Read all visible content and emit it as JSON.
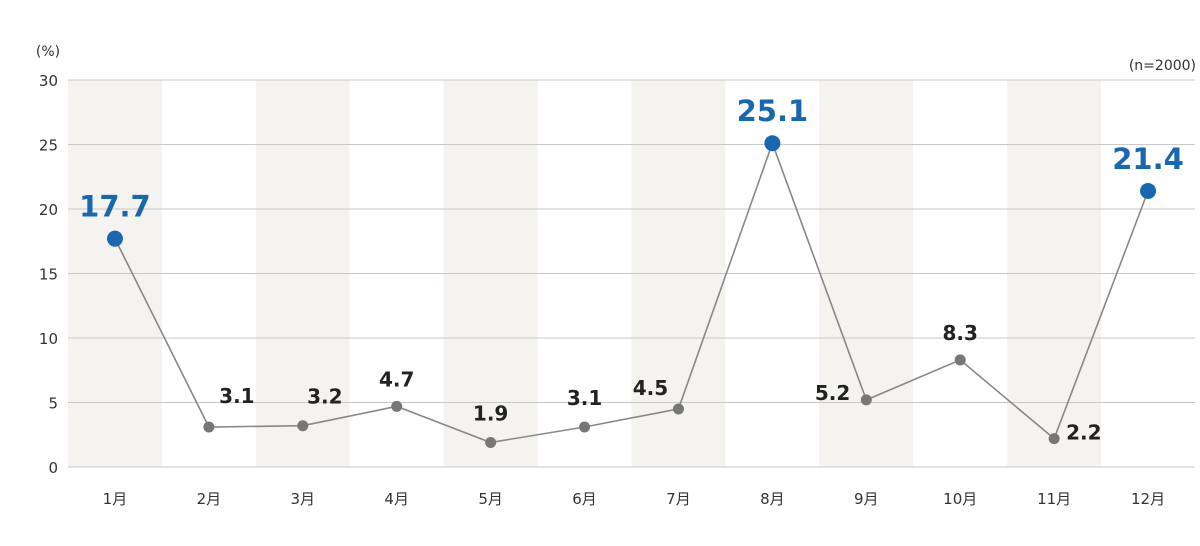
{
  "chart_data": {
    "type": "line",
    "y_unit": "(%)",
    "sample_note": "(n=2000)",
    "categories": [
      "1月",
      "2月",
      "3月",
      "4月",
      "5月",
      "6月",
      "7月",
      "8月",
      "9月",
      "10月",
      "11月",
      "12月"
    ],
    "values": [
      17.7,
      3.1,
      3.2,
      4.7,
      1.9,
      3.1,
      4.5,
      25.1,
      5.2,
      8.3,
      2.2,
      21.4
    ],
    "value_labels": [
      "17.7",
      "3.1",
      "3.2",
      "4.7",
      "1.9",
      "3.1",
      "4.5",
      "25.1",
      "5.2",
      "8.3",
      "2.2",
      "21.4"
    ],
    "highlighted": [
      0,
      7,
      11
    ],
    "ylim": [
      0,
      30
    ],
    "yticks": [
      0,
      5,
      10,
      15,
      20,
      25,
      30
    ],
    "grid": true,
    "legend": "none",
    "colors": {
      "line": "#888888",
      "point": "#777777",
      "highlight": "#1a67b1",
      "grid": "#c8c8c8",
      "band_odd": "#f4f3f0",
      "band_even": "#ffffff"
    }
  }
}
